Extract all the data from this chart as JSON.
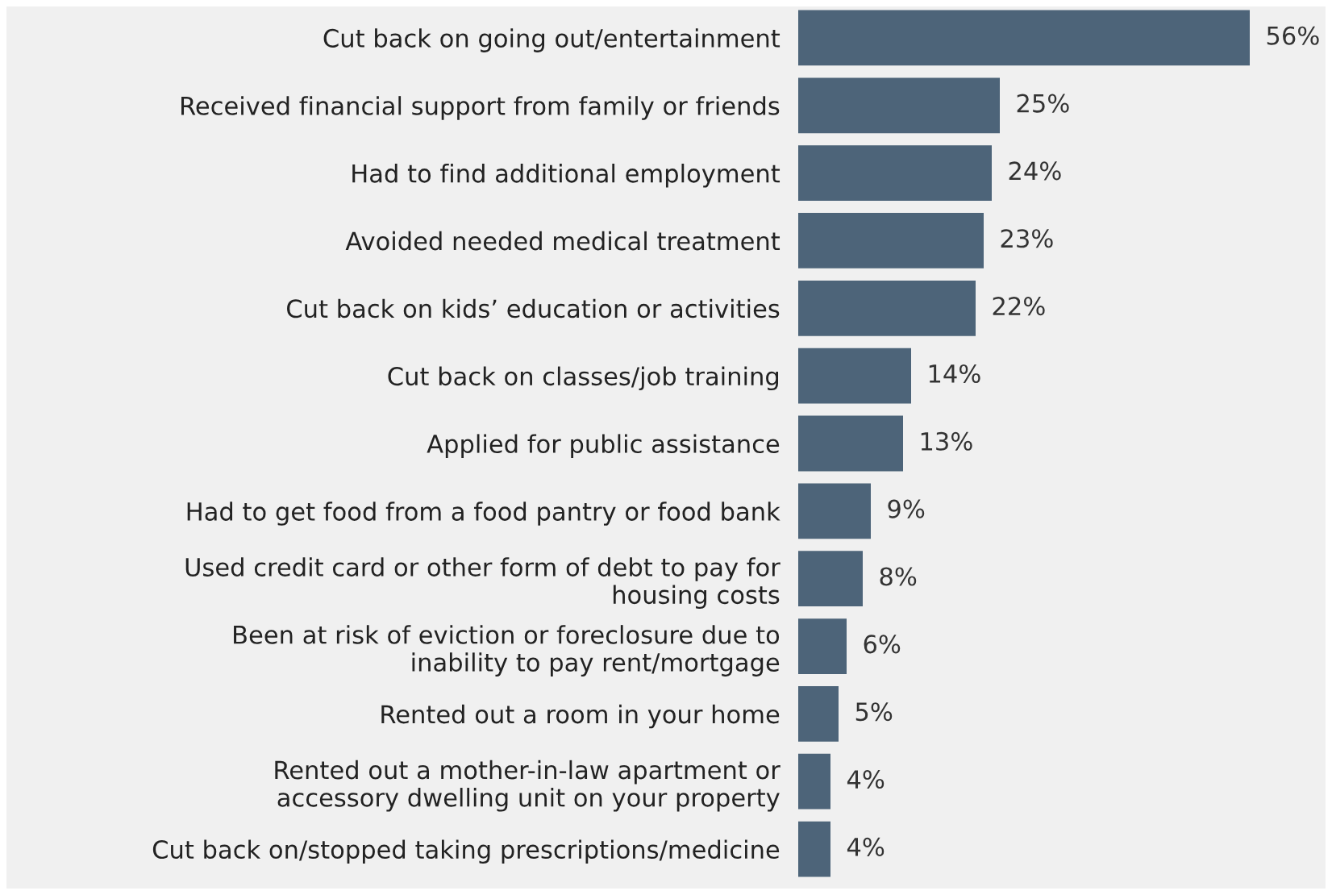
{
  "chart_data": {
    "type": "bar",
    "orientation": "horizontal",
    "categories": [
      "Cut back on going out/entertainment",
      "Received financial support from family or friends",
      "Had to find additional employment",
      "Avoided needed medical treatment",
      "Cut back on kids’ education or activities",
      "Cut back on classes/job training",
      "Applied for public assistance",
      "Had to get food from a food pantry or food bank",
      "Used credit card or other form of debt to pay for\nhousing costs",
      "Been at risk of eviction or foreclosure due to\ninability to pay rent/mortgage",
      "Rented out a room in your home",
      "Rented out a mother-in-law apartment or\naccessory dwelling unit on your property",
      "Cut back on/stopped taking prescriptions/medicine"
    ],
    "values": [
      56,
      25,
      24,
      23,
      22,
      14,
      13,
      9,
      8,
      6,
      5,
      4,
      4
    ],
    "value_labels": [
      "56%",
      "25%",
      "24%",
      "23%",
      "22%",
      "14%",
      "13%",
      "9%",
      "8%",
      "6%",
      "5%",
      "4%",
      "4%"
    ],
    "color": "#4d6479",
    "grid": false,
    "legend": false
  }
}
